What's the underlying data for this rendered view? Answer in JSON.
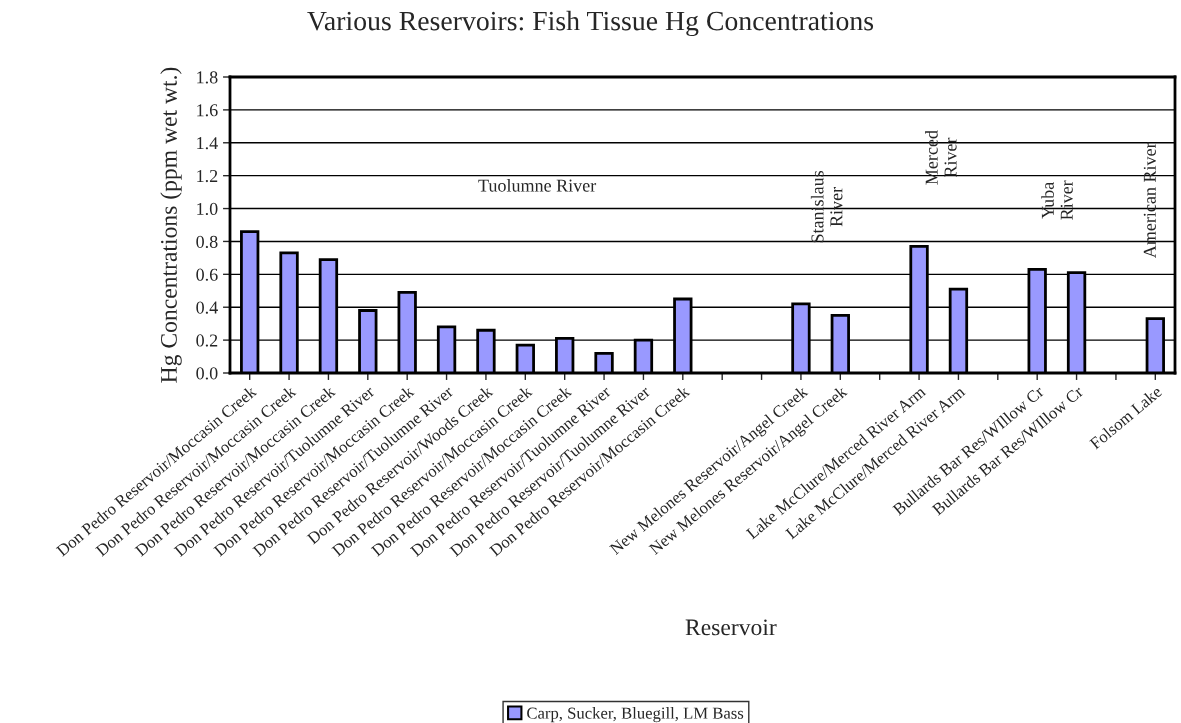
{
  "chart_data": {
    "type": "bar",
    "title": "Various Reservoirs: Fish Tissue Hg Concentrations",
    "xlabel": "Reservoir",
    "ylabel": "Hg Concentrations (ppm wet wt.)",
    "categories": [
      "Don Pedro Reservoir/Moccasin Creek",
      "Don Pedro Reservoir/Moccasin Creek",
      "Don Pedro Reservoir/Moccasin Creek",
      "Don Pedro Reservoir/Tuolumne River",
      "Don Pedro Reservoir/Moccasin Creek",
      "Don Pedro Reservoir/Tuolumne River",
      "Don Pedro Reservoir/Woods Creek",
      "Don Pedro Reservoir/Moccasin Creek",
      "Don Pedro Reservoir/Moccasin Creek",
      "Don Pedro Reservoir/Tuolumne River",
      "Don Pedro Reservoir/Tuolumne River",
      "Don Pedro Reservoir/Moccasin Creek",
      null,
      null,
      "New Melones Reservoir/Angel Creek",
      "New Melones Reservoir/Angel Creek",
      null,
      "Lake McClure/Merced River Arm",
      "Lake McClure/Merced River Arm",
      null,
      "Bullards Bar Res/WIllow Cr",
      "Bullards Bar Res/WIllow Cr",
      null,
      "Folsom Lake"
    ],
    "series": [
      {
        "name": "Carp, Sucker, Bluegill, LM Bass",
        "color": "#9999ff",
        "values": [
          0.86,
          0.73,
          0.69,
          0.38,
          0.49,
          0.28,
          0.26,
          0.17,
          0.21,
          0.12,
          0.2,
          0.45,
          null,
          null,
          0.42,
          0.35,
          null,
          0.77,
          0.51,
          null,
          0.63,
          0.61,
          null,
          0.33
        ]
      }
    ],
    "ylim": [
      0,
      1.8
    ],
    "yticks": [
      {
        "value": 0,
        "label": "0.0"
      },
      {
        "value": 0.2,
        "label": "0.2"
      },
      {
        "value": 0.4,
        "label": "0.4"
      },
      {
        "value": 0.6,
        "label": "0.6"
      },
      {
        "value": 0.8,
        "label": "0.8"
      },
      {
        "value": 1.0,
        "label": "1.0"
      },
      {
        "value": 1.2,
        "label": "1.2"
      },
      {
        "value": 1.4,
        "label": "1.4"
      },
      {
        "value": 1.6,
        "label": "1.6"
      },
      {
        "value": 1.8,
        "label": "1.8"
      }
    ],
    "grid": "y",
    "legend": "bottom",
    "annotations": [
      "Tuolumne River",
      "Stanislaus\nRiver",
      "Merced\nRiver",
      "Yuba\nRiver",
      "American River"
    ]
  }
}
